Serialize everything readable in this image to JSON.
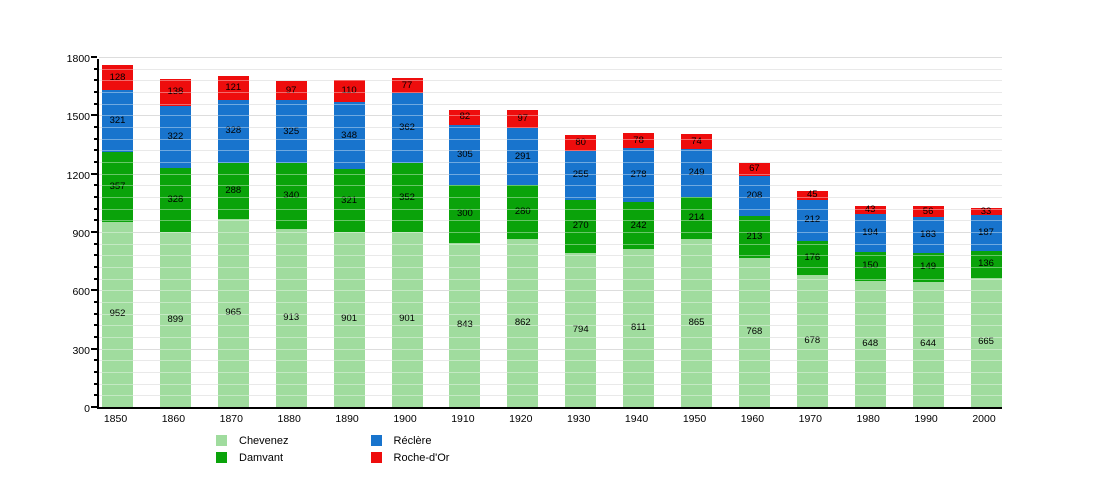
{
  "chart_data": {
    "type": "bar",
    "stacked": true,
    "title": "",
    "xlabel": "",
    "ylabel": "",
    "categories": [
      "1850",
      "1860",
      "1870",
      "1880",
      "1890",
      "1900",
      "1910",
      "1920",
      "1930",
      "1940",
      "1950",
      "1960",
      "1970",
      "1980",
      "1990",
      "2000"
    ],
    "series": [
      {
        "name": "Chevenez",
        "color": "#A0DC9E",
        "values": [
          952,
          899,
          965,
          913,
          901,
          901,
          843,
          862,
          794,
          811,
          865,
          768,
          678,
          648,
          644,
          665
        ]
      },
      {
        "name": "Damvant",
        "color": "#0AA30A",
        "values": [
          357,
          328,
          288,
          340,
          321,
          352,
          300,
          280,
          270,
          242,
          214,
          213,
          176,
          150,
          149,
          136
        ]
      },
      {
        "name": "Réclère",
        "color": "#1874CD",
        "values": [
          321,
          322,
          328,
          325,
          348,
          362,
          305,
          291,
          255,
          278,
          249,
          208,
          212,
          194,
          183,
          187
        ]
      },
      {
        "name": "Roche-d'Or",
        "color": "#EE0D0D",
        "values": [
          128,
          138,
          121,
          97,
          110,
          77,
          82,
          97,
          80,
          78,
          74,
          67,
          45,
          43,
          56,
          33
        ]
      }
    ],
    "ylim": [
      0,
      1800
    ],
    "yticks": [
      0,
      300,
      600,
      900,
      1200,
      1500,
      1800
    ],
    "minor_grid_step": 60,
    "grid": true,
    "value_labels": true,
    "legend_position": "bottom"
  },
  "colors": {
    "background": "#FFFFFF",
    "axis": "#000000",
    "grid_minor": "#DCDCDC",
    "grid_major": "#C9C9C9",
    "label_text": "#000000"
  }
}
